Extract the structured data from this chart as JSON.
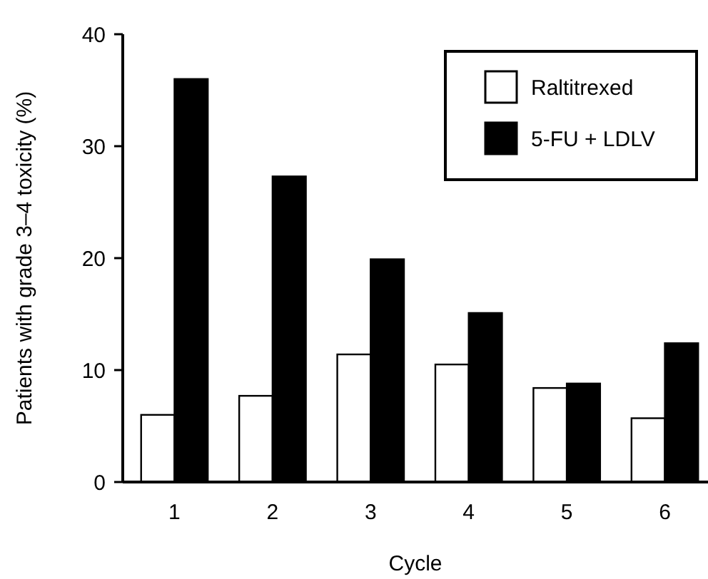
{
  "chart_data": {
    "type": "bar",
    "xlabel": "Cycle",
    "ylabel": "Patients with grade 3–4 toxicity (%)",
    "categories": [
      "1",
      "2",
      "3",
      "4",
      "5",
      "6"
    ],
    "series": [
      {
        "name": "Raltitrexed",
        "color": "#ffffff",
        "values": [
          6.0,
          7.7,
          11.4,
          10.5,
          8.4,
          5.7
        ]
      },
      {
        "name": "5-FU + LDLV",
        "color": "#000000",
        "values": [
          36.0,
          27.3,
          19.9,
          15.1,
          8.8,
          12.4
        ]
      }
    ],
    "ylim": [
      0,
      40
    ],
    "yticks": [
      0,
      10,
      20,
      30,
      40
    ],
    "grid": false,
    "legend": "top right"
  }
}
